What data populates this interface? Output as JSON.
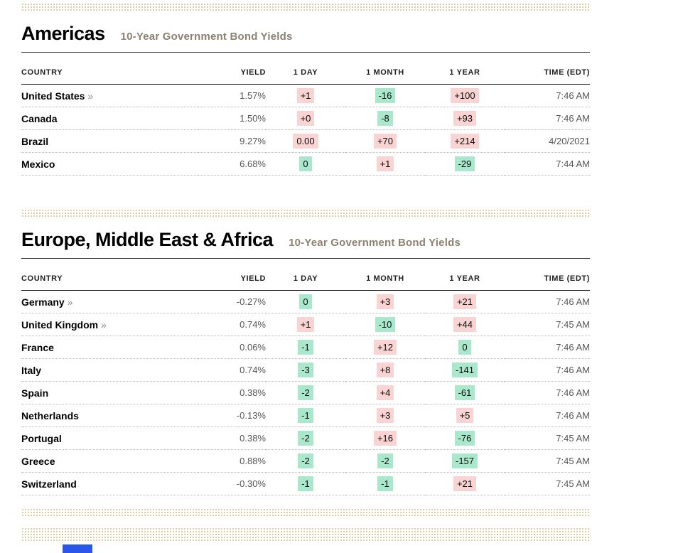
{
  "colors": {
    "change_up_bg": "#f9d4d2",
    "change_down_bg": "#a9e8cd",
    "ad_band": "#ddcfa2",
    "ad_fragment_blue": "#2b57e8",
    "subtitle": "#8b8170"
  },
  "link_marker": "»",
  "sections": [
    {
      "title": "Americas",
      "subtitle": "10-Year Government Bond Yields",
      "columns": [
        "COUNTRY",
        "YIELD",
        "1 DAY",
        "1 MONTH",
        "1 YEAR",
        "TIME (EDT)"
      ],
      "rows": [
        {
          "country": "United States",
          "link": true,
          "yield": "1.57%",
          "changes": [
            {
              "v": "+1",
              "c": "up"
            },
            {
              "v": "-16",
              "c": "down"
            },
            {
              "v": "+100",
              "c": "up"
            }
          ],
          "time": "7:46 AM"
        },
        {
          "country": "Canada",
          "link": false,
          "yield": "1.50%",
          "changes": [
            {
              "v": "+0",
              "c": "up"
            },
            {
              "v": "-8",
              "c": "down"
            },
            {
              "v": "+93",
              "c": "up"
            }
          ],
          "time": "7:46 AM"
        },
        {
          "country": "Brazil",
          "link": false,
          "yield": "9.27%",
          "changes": [
            {
              "v": "0.00",
              "c": "up"
            },
            {
              "v": "+70",
              "c": "up"
            },
            {
              "v": "+214",
              "c": "up"
            }
          ],
          "time": "4/20/2021"
        },
        {
          "country": "Mexico",
          "link": false,
          "yield": "6.68%",
          "changes": [
            {
              "v": "0",
              "c": "down"
            },
            {
              "v": "+1",
              "c": "up"
            },
            {
              "v": "-29",
              "c": "down"
            }
          ],
          "time": "7:44 AM"
        }
      ]
    },
    {
      "title": "Europe, Middle East & Africa",
      "subtitle": "10-Year Government Bond Yields",
      "columns": [
        "COUNTRY",
        "YIELD",
        "1 DAY",
        "1 MONTH",
        "1 YEAR",
        "TIME (EDT)"
      ],
      "rows": [
        {
          "country": "Germany",
          "link": true,
          "yield": "-0.27%",
          "changes": [
            {
              "v": "0",
              "c": "down"
            },
            {
              "v": "+3",
              "c": "up"
            },
            {
              "v": "+21",
              "c": "up"
            }
          ],
          "time": "7:46 AM"
        },
        {
          "country": "United Kingdom",
          "link": true,
          "yield": "0.74%",
          "changes": [
            {
              "v": "+1",
              "c": "up"
            },
            {
              "v": "-10",
              "c": "down"
            },
            {
              "v": "+44",
              "c": "up"
            }
          ],
          "time": "7:45 AM"
        },
        {
          "country": "France",
          "link": false,
          "yield": "0.06%",
          "changes": [
            {
              "v": "-1",
              "c": "down"
            },
            {
              "v": "+12",
              "c": "up"
            },
            {
              "v": "0",
              "c": "down"
            }
          ],
          "time": "7:46 AM"
        },
        {
          "country": "Italy",
          "link": false,
          "yield": "0.74%",
          "changes": [
            {
              "v": "-3",
              "c": "down"
            },
            {
              "v": "+8",
              "c": "up"
            },
            {
              "v": "-141",
              "c": "down"
            }
          ],
          "time": "7:46 AM"
        },
        {
          "country": "Spain",
          "link": false,
          "yield": "0.38%",
          "changes": [
            {
              "v": "-2",
              "c": "down"
            },
            {
              "v": "+4",
              "c": "up"
            },
            {
              "v": "-61",
              "c": "down"
            }
          ],
          "time": "7:46 AM"
        },
        {
          "country": "Netherlands",
          "link": false,
          "yield": "-0.13%",
          "changes": [
            {
              "v": "-1",
              "c": "down"
            },
            {
              "v": "+3",
              "c": "up"
            },
            {
              "v": "+5",
              "c": "up"
            }
          ],
          "time": "7:46 AM"
        },
        {
          "country": "Portugal",
          "link": false,
          "yield": "0.38%",
          "changes": [
            {
              "v": "-2",
              "c": "down"
            },
            {
              "v": "+16",
              "c": "up"
            },
            {
              "v": "-76",
              "c": "down"
            }
          ],
          "time": "7:45 AM"
        },
        {
          "country": "Greece",
          "link": false,
          "yield": "0.88%",
          "changes": [
            {
              "v": "-2",
              "c": "down"
            },
            {
              "v": "-2",
              "c": "down"
            },
            {
              "v": "-157",
              "c": "down"
            }
          ],
          "time": "7:45 AM"
        },
        {
          "country": "Switzerland",
          "link": false,
          "yield": "-0.30%",
          "changes": [
            {
              "v": "-1",
              "c": "down"
            },
            {
              "v": "-1",
              "c": "down"
            },
            {
              "v": "+21",
              "c": "up"
            }
          ],
          "time": "7:45 AM"
        }
      ]
    }
  ]
}
